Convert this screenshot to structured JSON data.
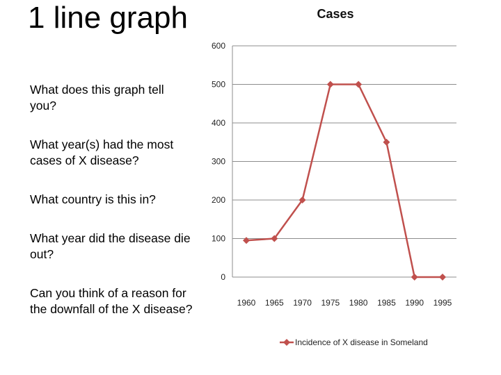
{
  "slide": {
    "title": "1 line graph",
    "questions": [
      "What does this graph tell you?",
      "What year(s) had the most cases of X disease?",
      "What country is this in?",
      "What year did the disease die out?",
      "Can you think of a reason for the downfall of the X disease?"
    ]
  },
  "chart_data": {
    "type": "line",
    "title": "Cases",
    "categories": [
      "1960",
      "1965",
      "1970",
      "1975",
      "1980",
      "1985",
      "1990",
      "1995"
    ],
    "series": [
      {
        "name": "Incidence of X disease in Someland",
        "values": [
          95,
          100,
          200,
          500,
          500,
          350,
          0,
          0
        ],
        "color": "#c0504d"
      }
    ],
    "yticks": [
      "0",
      "100",
      "200",
      "300",
      "400",
      "500",
      "600"
    ],
    "ylim": [
      0,
      600
    ],
    "grid": true,
    "legend_position": "bottom"
  }
}
